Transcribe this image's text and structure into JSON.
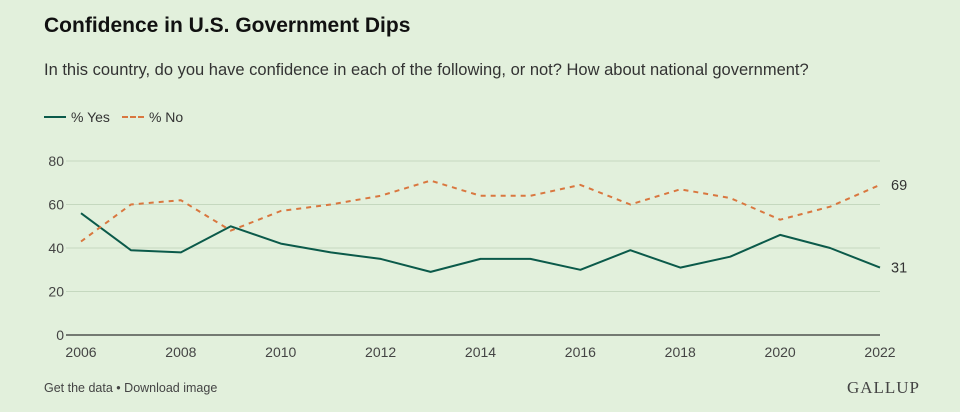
{
  "header": {
    "title": "Confidence in U.S. Government Dips",
    "subtitle": "In this country, do you have confidence in each of the following, or not? How about national government?"
  },
  "legend": {
    "yes_label": "% Yes",
    "no_label": "% No"
  },
  "footer": {
    "get_data": "Get the data",
    "separator": "•",
    "download": "Download image",
    "brand": "GALLUP"
  },
  "colors": {
    "yes": "#0b5a4a",
    "no": "#d9773f",
    "grid": "#c5d8bf",
    "axis": "#333333",
    "background": "#e2f0dc"
  },
  "chart_data": {
    "type": "line",
    "x": [
      2006,
      2007,
      2008,
      2009,
      2010,
      2011,
      2012,
      2013,
      2014,
      2015,
      2016,
      2017,
      2018,
      2019,
      2020,
      2021,
      2022
    ],
    "series": [
      {
        "name": "% Yes",
        "values": [
          56,
          39,
          38,
          50,
          42,
          38,
          35,
          29,
          35,
          35,
          30,
          39,
          31,
          36,
          46,
          40,
          31
        ],
        "style": "solid"
      },
      {
        "name": "% No",
        "values": [
          43,
          60,
          62,
          48,
          57,
          60,
          64,
          71,
          64,
          64,
          69,
          60,
          67,
          63,
          53,
          59,
          69
        ],
        "style": "dashed"
      }
    ],
    "end_labels": [
      "31",
      "69"
    ],
    "xlim": [
      2006,
      2022
    ],
    "ylim": [
      0,
      80
    ],
    "yticks": [
      0,
      20,
      40,
      60,
      80
    ],
    "xticks": [
      2006,
      2008,
      2010,
      2012,
      2014,
      2016,
      2018,
      2020,
      2022
    ],
    "title": "Confidence in U.S. Government Dips",
    "xlabel": "",
    "ylabel": "",
    "grid": true,
    "legend_position": "top-left"
  }
}
